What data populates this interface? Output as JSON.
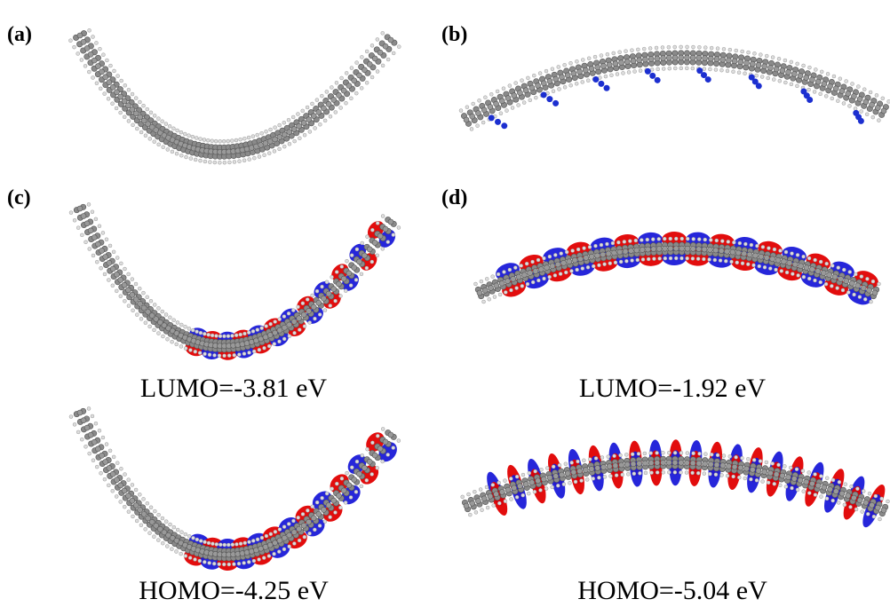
{
  "panels": [
    {
      "label": "(a)"
    },
    {
      "label": "(b)"
    },
    {
      "label": "(c)",
      "lumo": "LUMO=-3.81 eV",
      "homo": "HOMO=-4.25 eV"
    },
    {
      "label": "(d)",
      "lumo": "LUMO=-1.92 eV",
      "homo": "HOMO=-5.04 eV"
    }
  ]
}
